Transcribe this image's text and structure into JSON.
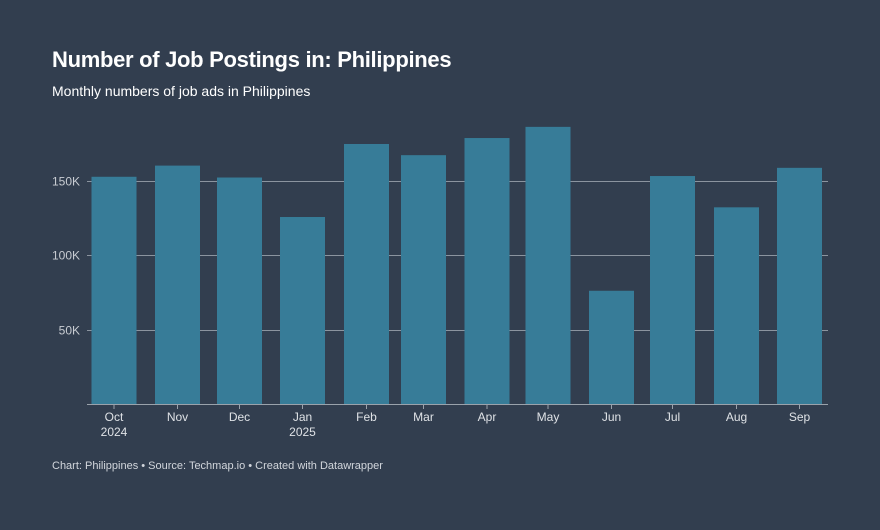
{
  "header": {
    "title": "Number of Job Postings in: Philippines",
    "subtitle": "Monthly numbers of job ads in Philippines"
  },
  "footer": {
    "text": "Chart: Philippines • Source: Techmap.io • Created with Datawrapper"
  },
  "chart_data": {
    "type": "bar",
    "title": "Number of Job Postings in: Philippines",
    "subtitle": "Monthly numbers of job ads in Philippines",
    "categories": [
      "Oct 2024",
      "Nov",
      "Dec",
      "Jan 2025",
      "Feb",
      "Mar",
      "Apr",
      "May",
      "Jun",
      "Jul",
      "Aug",
      "Sep"
    ],
    "category_lines": [
      [
        "Oct",
        "2024"
      ],
      [
        "Nov"
      ],
      [
        "Dec"
      ],
      [
        "Jan",
        "2025"
      ],
      [
        "Feb"
      ],
      [
        "Mar"
      ],
      [
        "Apr"
      ],
      [
        "May"
      ],
      [
        "Jun"
      ],
      [
        "Jul"
      ],
      [
        "Aug"
      ],
      [
        "Sep"
      ]
    ],
    "values": [
      152500,
      160000,
      152000,
      125500,
      174500,
      167000,
      178500,
      186000,
      76000,
      153000,
      132000,
      158500
    ],
    "ylim": [
      0,
      190000
    ],
    "yticks": [
      50000,
      100000,
      150000
    ],
    "ytick_labels": [
      "50K",
      "100K",
      "150K"
    ],
    "xlabel": "",
    "ylabel": "",
    "grid": true,
    "legend": "none",
    "colors": {
      "bar": "#377c98",
      "grid": "#8b949f",
      "axis": "#9aa2ab",
      "background": "#323e4f"
    }
  }
}
